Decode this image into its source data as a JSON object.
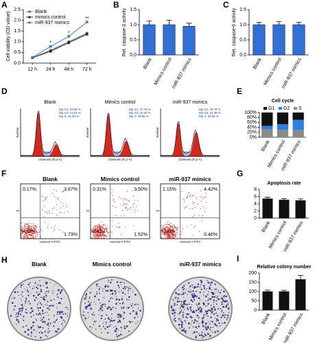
{
  "chart_data": [
    {
      "panel": "A",
      "type": "line",
      "y_label": "Cell viability (OD value)",
      "categories": [
        "12 h",
        "24 h",
        "48 h",
        "72 h"
      ],
      "series": [
        {
          "name": "Blank",
          "color": "#666666",
          "values": [
            0.25,
            0.6,
            1.0,
            1.4
          ]
        },
        {
          "name": "mimics control",
          "color": "#222222",
          "values": [
            0.25,
            0.55,
            0.95,
            1.35
          ]
        },
        {
          "name": "miR-937 mimics",
          "color": "#3a78c9",
          "values": [
            0.27,
            0.78,
            1.25,
            1.92
          ]
        }
      ],
      "annotations": [
        null,
        "*",
        "*",
        "**"
      ],
      "ylim": [
        0,
        2.5
      ],
      "yticks": [
        {
          "value": 0,
          "label": "0.0"
        },
        {
          "value": 0.5,
          "label": "0.5"
        },
        {
          "value": 1,
          "label": "1.0"
        },
        {
          "value": 1.5,
          "label": "1.5"
        },
        {
          "value": 2,
          "label": "2.0"
        },
        {
          "value": 2.5,
          "label": "2.5"
        }
      ]
    },
    {
      "panel": "B",
      "type": "bar",
      "y_label": "Ret. caspase-3 activity",
      "categories": [
        "Blank",
        "Mimics control",
        "miR-937 mimics"
      ],
      "values": [
        1.0,
        1.0,
        0.95
      ],
      "errors": [
        0.12,
        0.15,
        0.1
      ],
      "color": "#2f6fd6",
      "ylim": [
        0,
        1.5
      ],
      "yticks": [
        {
          "value": 0,
          "label": "0.0"
        },
        {
          "value": 0.5,
          "label": "0.5"
        },
        {
          "value": 1,
          "label": "1.0"
        },
        {
          "value": 1.5,
          "label": "1.5"
        }
      ]
    },
    {
      "panel": "C",
      "type": "bar",
      "y_label": "Ret. caspase-9 activity",
      "categories": [
        "Blank",
        "Mimics control",
        "miR-937 mimics"
      ],
      "values": [
        1.0,
        1.0,
        1.0
      ],
      "errors": [
        0.08,
        0.1,
        0.08
      ],
      "color": "#2f6fd6",
      "ylim": [
        0,
        1.5
      ],
      "yticks": [
        {
          "value": 0,
          "label": "0.0"
        },
        {
          "value": 0.5,
          "label": "0.5"
        },
        {
          "value": 1,
          "label": "1.0"
        },
        {
          "value": 1.5,
          "label": "1.5"
        }
      ]
    },
    {
      "panel": "E",
      "type": "stacked_bar",
      "title": "Cell cycle",
      "categories": [
        "Blank",
        "Mimics control",
        "miR-937 mimics"
      ],
      "series": [
        {
          "name": "G1",
          "color": "#111111",
          "values": [
            53.98,
            47.75,
            29.79
          ]
        },
        {
          "name": "G2",
          "color": "#2f7fe0",
          "values": [
            14.53,
            22.35,
            41.38
          ]
        },
        {
          "name": "S",
          "color": "#8a8a8a",
          "values": [
            31.49,
            29.88,
            28.84
          ]
        }
      ],
      "ylim": [
        0,
        100
      ],
      "yticks": [
        {
          "value": 0,
          "label": "0%"
        },
        {
          "value": 20,
          "label": "20%"
        },
        {
          "value": 40,
          "label": "40%"
        },
        {
          "value": 60,
          "label": "60%"
        },
        {
          "value": 80,
          "label": "80%"
        },
        {
          "value": 100,
          "label": "100%"
        }
      ]
    },
    {
      "panel": "G",
      "type": "bar",
      "title": "Apoptosis rate",
      "categories": [
        "Blank",
        "Mimics control",
        "miR-937 mimics"
      ],
      "values": [
        5.4,
        5.05,
        4.88
      ],
      "errors": [
        0.4,
        0.35,
        0.45
      ],
      "color": "#111111",
      "ylim": [
        0,
        8
      ],
      "yticks": [
        0,
        2,
        4,
        6,
        8
      ]
    },
    {
      "panel": "I",
      "type": "bar",
      "title": "Relative colony number",
      "categories": [
        "Blank",
        "Mimics control",
        "miR-937 mimics"
      ],
      "values": [
        100,
        100,
        165
      ],
      "errors": [
        8,
        7,
        22
      ],
      "color": "#111111",
      "ylim": [
        0,
        200
      ],
      "yticks": [
        0,
        50,
        100,
        150,
        200
      ]
    }
  ],
  "flow_cycle": {
    "panel": "D",
    "x_label": "Channels (FL2-A)",
    "y_label": "Number",
    "samples": [
      {
        "title": "Blank",
        "stats": [
          "Dip G1: 53.98 %",
          "Dip G2: 14.53 %",
          "Dip S: 31.49 %"
        ]
      },
      {
        "title": "Mimics control",
        "stats": [
          "Dip G1: 47.75 %",
          "Dip G2: 22.35 %",
          "Dip S: 29.88 %"
        ]
      },
      {
        "title": "miR-937 mimics",
        "stats": [
          "Dip G1: 29.79 %",
          "Dip G2: 41.38 %",
          "Dip S: 28.84 %"
        ]
      }
    ]
  },
  "flow_apoptosis": {
    "panel": "F",
    "x_label": "Annexin-V-FITC",
    "y_label": "PI",
    "samples": [
      {
        "title": "Blank",
        "upper_left": "0.17%",
        "upper_right": "3.67%",
        "lower_left": "94.43%",
        "lower_right": "1.73%"
      },
      {
        "title": "Mimics control",
        "upper_left": "0.31%",
        "upper_right": "3.50%",
        "lower_left": "94.67%",
        "lower_right": "1.52%"
      },
      {
        "title": "miR-937 mimics",
        "upper_left": "1.15%",
        "upper_right": "4.42%",
        "lower_left": "93.97%",
        "lower_right": "0.46%"
      }
    ]
  },
  "colony": {
    "panel": "H",
    "samples": [
      "Blank",
      "Mimics control",
      "miR-937 mimics"
    ]
  }
}
